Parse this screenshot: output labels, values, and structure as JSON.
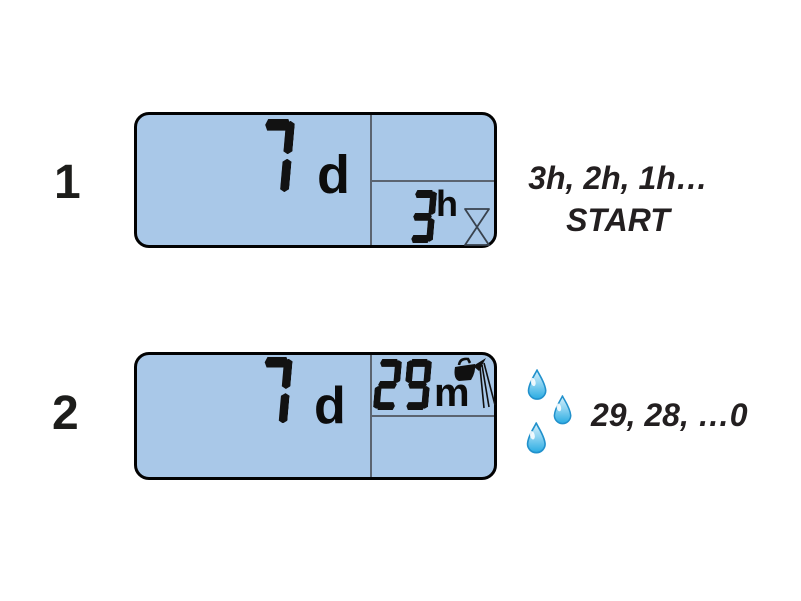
{
  "colors": {
    "background": "#ffffff",
    "lcd_fill": "#a9c8e8",
    "lcd_border": "#020202",
    "lcd_divider": "#5b6470",
    "segment_black": "#121212",
    "annotation_text": "#231f20",
    "drop_blue": "#29abe2",
    "drop_outline": "#2191cc"
  },
  "steps": [
    {
      "number": "1",
      "lcd": {
        "days": "7",
        "days_unit": "d",
        "sub_value": "3",
        "sub_unit": "h",
        "sub_icon": "hourglass-icon"
      },
      "note": {
        "line1": "3h, 2h, 1h…",
        "line2": "START"
      }
    },
    {
      "number": "2",
      "lcd": {
        "days": "7",
        "days_unit": "d",
        "sub_value": "29",
        "sub_unit": "m",
        "sub_icon": "watering-can-icon"
      },
      "side_icon": "water-drops-icon",
      "note": {
        "line1": "29, 28, …0"
      }
    }
  ]
}
